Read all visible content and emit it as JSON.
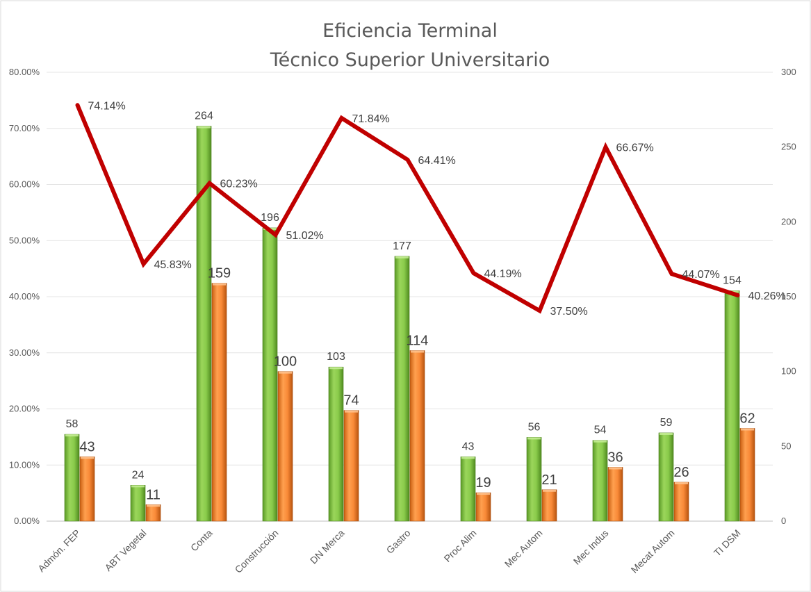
{
  "chart_data": {
    "type": "bar",
    "title": "Eficiencia Terminal",
    "subtitle": "Técnico Superior Universitario",
    "categories": [
      "Admón. FEP",
      "ABT Vegetal",
      "Conta",
      "Construcción",
      "DN Merca",
      "Gastro",
      "Proc Alim",
      "Mec Autom",
      "Mec Indus",
      "Mecat Autom",
      "TI DSM"
    ],
    "series": [
      {
        "type": "bar",
        "axis": "right",
        "values": [
          58,
          24,
          264,
          196,
          103,
          177,
          43,
          56,
          54,
          59,
          154
        ],
        "labels": [
          "58",
          "24",
          "264",
          "196",
          "103",
          "177",
          "43",
          "56",
          "54",
          "59",
          "154"
        ],
        "color": "#7dc242"
      },
      {
        "type": "bar",
        "axis": "right",
        "values": [
          43,
          11,
          159,
          100,
          74,
          114,
          19,
          21,
          36,
          26,
          62
        ],
        "labels": [
          "43",
          "11",
          "159",
          "100",
          "74",
          "114",
          "19",
          "21",
          "36",
          "26",
          "62"
        ],
        "color": "#f07e26"
      },
      {
        "type": "line",
        "axis": "left",
        "values": [
          74.14,
          45.83,
          60.23,
          51.02,
          71.84,
          64.41,
          44.19,
          37.5,
          66.67,
          44.07,
          40.26
        ],
        "labels": [
          "74.14%",
          "45.83%",
          "60.23%",
          "51.02%",
          "71.84%",
          "64.41%",
          "44.19%",
          "37.50%",
          "66.67%",
          "44.07%",
          "40.26%"
        ],
        "color": "#c00000"
      }
    ],
    "y_left": {
      "min": 0,
      "max": 80,
      "ticks": [
        "0.00%",
        "10.00%",
        "20.00%",
        "30.00%",
        "40.00%",
        "50.00%",
        "60.00%",
        "70.00%",
        "80.00%"
      ]
    },
    "y_right": {
      "min": 0,
      "max": 300,
      "ticks": [
        "0",
        "50",
        "100",
        "150",
        "200",
        "250",
        "300"
      ]
    },
    "grid": true,
    "legend": "none"
  }
}
